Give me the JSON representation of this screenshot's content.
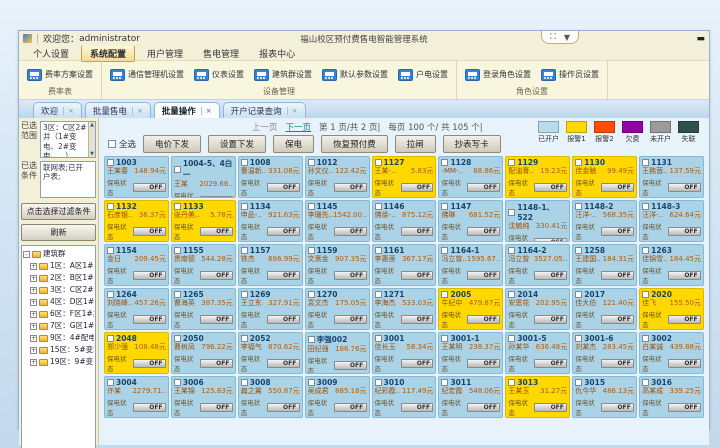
{
  "window": {
    "user_prefix": "欢迎您：",
    "user": "administrator",
    "title": "福山校区预付费售电智能管理系统",
    "restore_glyph": "⛶",
    "dropdown_glyph": "▼",
    "minimize_glyph": "▬"
  },
  "menu": {
    "items": [
      {
        "label": "个人设置",
        "active": false
      },
      {
        "label": "系统配置",
        "active": true
      },
      {
        "label": "用户管理",
        "active": false
      },
      {
        "label": "售电管理",
        "active": false
      },
      {
        "label": "报表中心",
        "active": false
      }
    ]
  },
  "ribbon": {
    "groups": [
      {
        "label": "费率表",
        "buttons": [
          "费率方案设置"
        ]
      },
      {
        "label": "设备管理",
        "buttons": [
          "通信管理机设置",
          "仪表设置",
          "建筑群设置",
          "默认参数设置",
          "户电设置"
        ]
      },
      {
        "label": "角色设置",
        "buttons": [
          "登录角色设置",
          "操作员设置"
        ]
      }
    ]
  },
  "tabs": [
    {
      "label": "欢迎",
      "active": false
    },
    {
      "label": "批量售电",
      "active": false
    },
    {
      "label": "批量操作",
      "active": true
    },
    {
      "label": "开户记录查询",
      "active": false
    }
  ],
  "sidebar": {
    "range_label": "已选范围",
    "range_value": "3区：C区2#井（1#变电、2#变电、...）",
    "cond_label": "已选条件",
    "cond_value": "联网表;已开户表;",
    "filter_button": "点击选择过滤条件",
    "refresh_button": "刷新",
    "tree": {
      "root": "建筑群",
      "items": [
        "1区：A区1#井",
        "2区：B区1#换热站(B区1...",
        "3区：C区2#井（1...",
        "4区：D区1#井（D...",
        "6区：F区1#井（F...",
        "7区：G区1#井",
        "9区：4#配电井（4...",
        "15区：5#变站（3...",
        "19区：9#变电站（..."
      ]
    }
  },
  "pagination": {
    "prev": "上一页",
    "next": "下一页",
    "page_info": "第  1 页/共  2 页|",
    "count_info": "每页 100 个/ 共   105 个|"
  },
  "toolbar": {
    "select_all": "全选",
    "buttons": [
      "电价下发",
      "设置下发",
      "保电",
      "恢复预付费",
      "拉闸",
      "抄表写卡"
    ]
  },
  "legend": {
    "items": [
      {
        "label": "已开户",
        "color": "#b8dcea"
      },
      {
        "label": "报警1",
        "color": "#ffd800"
      },
      {
        "label": "报警2",
        "color": "#ff4e00"
      },
      {
        "label": "欠费",
        "color": "#9400a8"
      },
      {
        "label": "未开户",
        "color": "#9b9b9b"
      },
      {
        "label": "失联",
        "color": "#30504f"
      }
    ]
  },
  "card_labels": {
    "baodian": "保电状态",
    "hezha": "合闸状态",
    "on": "ON",
    "off": "OFF"
  },
  "cards": [
    {
      "id": "1003",
      "name": "王某春",
      "amount": "148.94元",
      "status": "open"
    },
    {
      "id": "1004-5、4白一",
      "name": "王某",
      "amount": "2029.66..",
      "status": "open"
    },
    {
      "id": "1008",
      "name": "曹温新..",
      "amount": "331.08元",
      "status": "open"
    },
    {
      "id": "1012",
      "name": "孙文仪..",
      "amount": "122.42元",
      "status": "open"
    },
    {
      "id": "1127",
      "name": "王某-..",
      "amount": "5.83元",
      "status": "alarm1"
    },
    {
      "id": "1128",
      "name": "-MM-..",
      "amount": "88.86元",
      "status": "open"
    },
    {
      "id": "1129",
      "name": "配油膏..",
      "amount": "19.23元",
      "status": "alarm1"
    },
    {
      "id": "1130",
      "name": "佳金触",
      "amount": "99.49元",
      "status": "alarm1"
    },
    {
      "id": "1131",
      "name": "王務茵..",
      "amount": "137.59元",
      "status": "open"
    },
    {
      "id": "1132",
      "name": "石彦银..",
      "amount": "36.37元",
      "status": "alarm1"
    },
    {
      "id": "1133",
      "name": "张丹美..",
      "amount": "5.78元",
      "status": "alarm1"
    },
    {
      "id": "1134",
      "name": "申品-..",
      "amount": "921.63元",
      "status": "open"
    },
    {
      "id": "1145",
      "name": "李珊先..",
      "amount": "1542.00..",
      "status": "open"
    },
    {
      "id": "1146",
      "name": "佛徐-..",
      "amount": "875.12元",
      "status": "open"
    },
    {
      "id": "1147",
      "name": "佛琳",
      "amount": "681.52元",
      "status": "open"
    },
    {
      "id": "1148-1、522",
      "name": "沈毓纯",
      "amount": "330.41元",
      "status": "open"
    },
    {
      "id": "1148-2",
      "name": "汪洋-..",
      "amount": "568.35元",
      "status": "open"
    },
    {
      "id": "1148-3",
      "name": "汪洋-..",
      "amount": "624.64元",
      "status": "open"
    },
    {
      "id": "1154",
      "name": "金日",
      "amount": "209.45元",
      "status": "open"
    },
    {
      "id": "1155",
      "name": "贵南德",
      "amount": "544.28元",
      "status": "open"
    },
    {
      "id": "1157",
      "name": "铁杰",
      "amount": "686.99元",
      "status": "open"
    },
    {
      "id": "1159",
      "name": "文熹金",
      "amount": "907.35元",
      "status": "open"
    },
    {
      "id": "1161",
      "name": "李惠莲",
      "amount": "367.17元",
      "status": "open"
    },
    {
      "id": "1164-1",
      "name": "冯立曾..",
      "amount": "1595.67..",
      "status": "open"
    },
    {
      "id": "1164-2",
      "name": "冯立曾",
      "amount": "3527.05..",
      "status": "open"
    },
    {
      "id": "1258",
      "name": "王建国..",
      "amount": "184.31元",
      "status": "open"
    },
    {
      "id": "1263",
      "name": "佳锦雪..",
      "amount": "184.45元",
      "status": "open"
    },
    {
      "id": "1264",
      "name": "刘晓峰..",
      "amount": "457.26元",
      "status": "open"
    },
    {
      "id": "1265",
      "name": "曹海英",
      "amount": "387.35元",
      "status": "open"
    },
    {
      "id": "1269",
      "name": "王立东",
      "amount": "327.91元",
      "status": "open"
    },
    {
      "id": "1270",
      "name": "袁文杰",
      "amount": "175.05元",
      "status": "open"
    },
    {
      "id": "1271",
      "name": "李海杰",
      "amount": "533.03元",
      "status": "open"
    },
    {
      "id": "2005",
      "name": "牛纪中",
      "amount": "479.87元",
      "status": "alarm1"
    },
    {
      "id": "2014",
      "name": "安恩花",
      "amount": "202.95元",
      "status": "open"
    },
    {
      "id": "2017",
      "name": "佳大伯",
      "amount": "121.40元",
      "status": "open"
    },
    {
      "id": "2020",
      "name": "佳飞",
      "amount": "155.50元",
      "status": "alarm1"
    },
    {
      "id": "2048",
      "name": "郑少强",
      "amount": "108.48元",
      "status": "alarm1"
    },
    {
      "id": "2050",
      "name": "曹树凤",
      "amount": "796.22元",
      "status": "open"
    },
    {
      "id": "2052",
      "name": "李福气",
      "amount": "870.62元",
      "status": "open"
    },
    {
      "id": "李强002",
      "name": "田纪强",
      "amount": "186.76元",
      "status": "open"
    },
    {
      "id": "3001",
      "name": "佳长玉",
      "amount": "58.34元",
      "status": "open"
    },
    {
      "id": "3001-1",
      "name": "王某明",
      "amount": "238.37元",
      "status": "open"
    },
    {
      "id": "3001-5",
      "name": "孙某华",
      "amount": "636.48元",
      "status": "open"
    },
    {
      "id": "3001-6",
      "name": "刘某杰",
      "amount": "283.45元",
      "status": "open"
    },
    {
      "id": "3002",
      "name": "白某诚",
      "amount": "439.88元",
      "status": "open"
    },
    {
      "id": "3004",
      "name": "许某",
      "amount": "2279.71..",
      "status": "open"
    },
    {
      "id": "3006",
      "name": "王某锦",
      "amount": "125.83元",
      "status": "open"
    },
    {
      "id": "3008",
      "name": "扁之翼",
      "amount": "550.87元",
      "status": "open"
    },
    {
      "id": "3009",
      "name": "吴成君",
      "amount": "885.16元",
      "status": "open"
    },
    {
      "id": "3010",
      "name": "纪彩霞..",
      "amount": "117.49元",
      "status": "open"
    },
    {
      "id": "3011",
      "name": "纪宏霞",
      "amount": "548.06元",
      "status": "open"
    },
    {
      "id": "3013",
      "name": "王某玉",
      "amount": "31.27元",
      "status": "alarm1"
    },
    {
      "id": "3015",
      "name": "仇今华",
      "amount": "486.13元",
      "status": "open"
    },
    {
      "id": "3016",
      "name": "高某成",
      "amount": "339.25元",
      "status": "open"
    }
  ]
}
